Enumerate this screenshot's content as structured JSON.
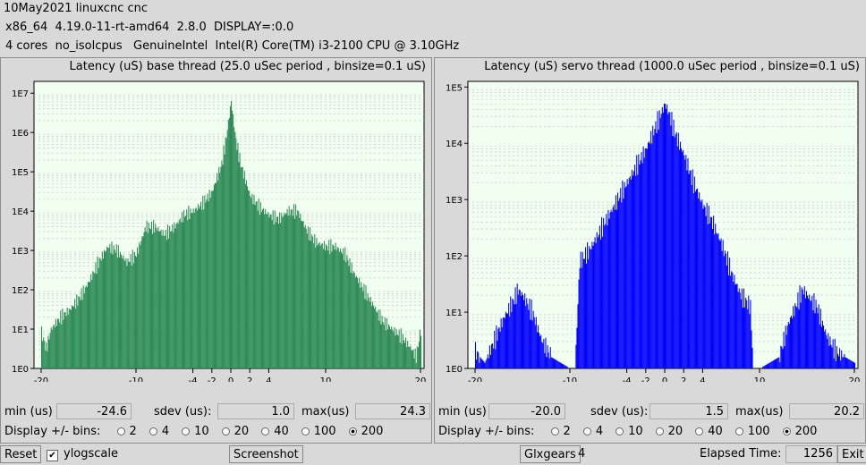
{
  "header": {
    "line1": "10May2021 linuxcnc cnc",
    "line2": "x86_64  4.19.0-11-rt-amd64  2.8.0  DISPLAY=:0.0",
    "line3": "4 cores  no_isolcpus   GenuineIntel  Intel(R) Core(TM) i3-2100 CPU @ 3.10GHz"
  },
  "labels": {
    "min": "min (us)",
    "sdev": "sdev (us):",
    "max": "max(us)",
    "display_bins": "Display +/- bins:"
  },
  "bin_options": [
    "2",
    "4",
    "10",
    "20",
    "40",
    "100",
    "200"
  ],
  "selected_bin": "200",
  "base": {
    "title": "Latency (uS) base thread (25.0 uSec period , binsize=0.1 uS)",
    "min": "-24.6",
    "sdev": "1.0",
    "max": "24.3",
    "color": "#2e8b57"
  },
  "servo": {
    "title": "Latency (uS) servo thread (1000.0 uSec period , binsize=0.1 uS)",
    "min": "-20.0",
    "sdev": "1.5",
    "max": "20.2",
    "color": "#0000ff"
  },
  "bottom": {
    "reset": "Reset",
    "ylogscale": "ylogscale",
    "ylogscale_checked": true,
    "screenshot": "Screenshot",
    "glxgears": "Glxgears",
    "glxgears_count": "4",
    "elapsed_label": "Elapsed Time:",
    "elapsed_value": "1256",
    "exit": "Exit"
  },
  "chart_data": [
    {
      "type": "bar",
      "title": "Latency (uS) base thread (25.0 uSec period , binsize=0.1 uS)",
      "x_ticks": [
        "-20",
        "-10",
        "-4",
        "-2",
        "0",
        "2",
        "4",
        "10",
        "20"
      ],
      "y_ticks": [
        "1E0",
        "1E1",
        "1E2",
        "1E3",
        "1E4",
        "1E5",
        "1E6",
        "1E7"
      ],
      "xlim": [
        -20,
        20
      ],
      "ylim_log10": [
        0,
        7.3
      ],
      "y_scale": "log",
      "profile_x": [
        -20,
        -19.5,
        -19,
        -18,
        -17,
        -16,
        -15,
        -14,
        -13,
        -12,
        -11,
        -10,
        -9,
        -8,
        -7,
        -6,
        -5,
        -4,
        -3,
        -2,
        -1,
        -0.5,
        0,
        0.5,
        1,
        2,
        3,
        4,
        5,
        6,
        7,
        8,
        9,
        10,
        11,
        12,
        13,
        14,
        15,
        16,
        17,
        18,
        19,
        19.5,
        20
      ],
      "profile_log10y": [
        0.9,
        0.5,
        1.0,
        1.3,
        1.5,
        1.8,
        2.2,
        2.7,
        3.1,
        3.0,
        2.7,
        2.9,
        3.6,
        3.6,
        3.4,
        3.6,
        3.9,
        4.0,
        4.2,
        4.5,
        5.2,
        5.9,
        6.8,
        5.8,
        5.2,
        4.4,
        4.1,
        3.9,
        3.8,
        4.0,
        4.0,
        3.5,
        3.2,
        3.1,
        3.1,
        2.9,
        2.4,
        2.0,
        1.6,
        1.2,
        1.0,
        0.8,
        0.5,
        0.3,
        1.0
      ]
    },
    {
      "type": "bar",
      "title": "Latency (uS) servo thread (1000.0 uSec period , binsize=0.1 uS)",
      "x_ticks": [
        "-20",
        "-10",
        "-4",
        "-2",
        "0",
        "2",
        "4",
        "10",
        "20"
      ],
      "y_ticks": [
        "1E0",
        "1E1",
        "1E2",
        "1E3",
        "1E4",
        "1E5"
      ],
      "xlim": [
        -20,
        20
      ],
      "ylim_log10": [
        0,
        5.1
      ],
      "y_scale": "log",
      "profile_x": [
        -20,
        -19,
        -18,
        -17,
        -16,
        -15.5,
        -15,
        -14,
        -13,
        -12,
        -11,
        -10,
        -9.5,
        -9,
        -8,
        -7,
        -6,
        -5,
        -4,
        -3,
        -2,
        -1,
        -0.5,
        0,
        0.5,
        1,
        2,
        3,
        4,
        5,
        6,
        7,
        8,
        9,
        9.3,
        10,
        11,
        12,
        13,
        14,
        14.5,
        15,
        16,
        17,
        18,
        19,
        20
      ],
      "profile_log10y": [
        0.3,
        0.1,
        0.5,
        0.9,
        1.2,
        1.4,
        1.3,
        1.0,
        0.5,
        0.2,
        0.1,
        0,
        0,
        1.9,
        2.1,
        2.4,
        2.7,
        3.0,
        3.3,
        3.6,
        3.9,
        4.3,
        4.5,
        4.7,
        4.5,
        4.2,
        3.8,
        3.3,
        2.9,
        2.6,
        2.2,
        1.7,
        1.3,
        1.1,
        0,
        0,
        0.1,
        0.2,
        0.8,
        1.2,
        1.4,
        1.3,
        1.1,
        0.6,
        0.3,
        0.2,
        0.1
      ]
    }
  ]
}
